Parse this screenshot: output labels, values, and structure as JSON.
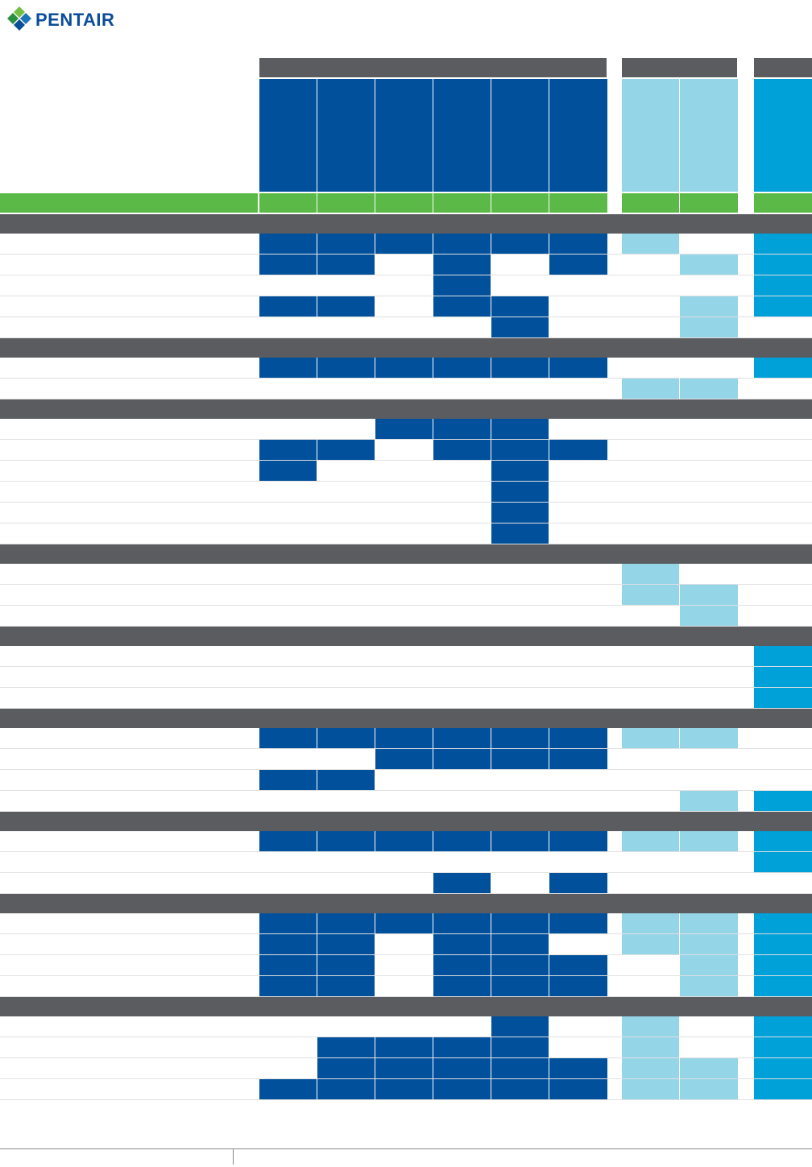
{
  "brand": {
    "name": "PENTAIR",
    "logo_icon": "pentair-diamond-icon",
    "text_color": "#0a4d9a",
    "icon_colors": [
      "#2a8f3e",
      "#73bf44",
      "#1b75bc"
    ]
  },
  "colors": {
    "section_gray": "#5a5c5f",
    "group_gray": "#5a5c5f",
    "accent_green": "#5bba47",
    "dark_blue": "#00509b",
    "light_blue": "#95d5e8",
    "mid_blue": "#00a0d8",
    "gridline": "#e0e0e0"
  },
  "columns": [
    {
      "id": "c1",
      "group": "A"
    },
    {
      "id": "c2",
      "group": "A"
    },
    {
      "id": "c3",
      "group": "A"
    },
    {
      "id": "c4",
      "group": "A"
    },
    {
      "id": "c5",
      "group": "A"
    },
    {
      "id": "c6",
      "group": "A"
    },
    {
      "id": "c7",
      "group": "B"
    },
    {
      "id": "c8",
      "group": "B"
    },
    {
      "id": "c9",
      "group": "C"
    }
  ],
  "sections": [
    {
      "rows": [
        [
          1,
          1,
          1,
          1,
          1,
          1,
          1,
          0,
          1
        ],
        [
          1,
          1,
          0,
          1,
          0,
          1,
          0,
          1,
          1
        ],
        [
          0,
          0,
          0,
          1,
          0,
          0,
          0,
          0,
          1
        ],
        [
          1,
          1,
          0,
          1,
          1,
          0,
          0,
          1,
          1
        ],
        [
          0,
          0,
          0,
          0,
          1,
          0,
          0,
          1,
          0
        ]
      ]
    },
    {
      "rows": [
        [
          1,
          1,
          1,
          1,
          1,
          1,
          0,
          0,
          1
        ],
        [
          0,
          0,
          0,
          0,
          0,
          0,
          1,
          1,
          0
        ]
      ]
    },
    {
      "rows": [
        [
          0,
          0,
          1,
          1,
          1,
          0,
          0,
          0,
          0
        ],
        [
          1,
          1,
          0,
          1,
          1,
          1,
          0,
          0,
          0
        ],
        [
          1,
          0,
          0,
          0,
          1,
          0,
          0,
          0,
          0
        ],
        [
          0,
          0,
          0,
          0,
          1,
          0,
          0,
          0,
          0
        ],
        [
          0,
          0,
          0,
          0,
          1,
          0,
          0,
          0,
          0
        ],
        [
          0,
          0,
          0,
          0,
          1,
          0,
          0,
          0,
          0
        ]
      ]
    },
    {
      "rows": [
        [
          0,
          0,
          0,
          0,
          0,
          0,
          1,
          0,
          0
        ],
        [
          0,
          0,
          0,
          0,
          0,
          0,
          1,
          1,
          0
        ],
        [
          0,
          0,
          0,
          0,
          0,
          0,
          0,
          1,
          0
        ]
      ]
    },
    {
      "rows": [
        [
          0,
          0,
          0,
          0,
          0,
          0,
          0,
          0,
          1
        ],
        [
          0,
          0,
          0,
          0,
          0,
          0,
          0,
          0,
          1
        ],
        [
          0,
          0,
          0,
          0,
          0,
          0,
          0,
          0,
          1
        ]
      ]
    },
    {
      "rows": [
        [
          1,
          1,
          1,
          1,
          1,
          1,
          1,
          1,
          0
        ],
        [
          0,
          0,
          1,
          1,
          1,
          1,
          0,
          0,
          0
        ],
        [
          1,
          1,
          0,
          0,
          0,
          0,
          0,
          0,
          0
        ],
        [
          0,
          0,
          0,
          0,
          0,
          0,
          0,
          1,
          1
        ]
      ]
    },
    {
      "rows": [
        [
          1,
          1,
          1,
          1,
          1,
          1,
          1,
          1,
          1
        ],
        [
          0,
          0,
          0,
          0,
          0,
          0,
          0,
          0,
          1
        ],
        [
          0,
          0,
          0,
          1,
          0,
          1,
          0,
          0,
          0
        ]
      ]
    },
    {
      "rows": [
        [
          1,
          1,
          1,
          1,
          1,
          1,
          1,
          1,
          1
        ],
        [
          1,
          1,
          0,
          1,
          1,
          0,
          1,
          1,
          1
        ],
        [
          1,
          1,
          0,
          1,
          1,
          1,
          0,
          1,
          1
        ],
        [
          1,
          1,
          0,
          1,
          1,
          1,
          0,
          1,
          1
        ]
      ]
    },
    {
      "rows": [
        [
          0,
          0,
          0,
          0,
          1,
          0,
          1,
          0,
          1
        ],
        [
          0,
          1,
          1,
          1,
          1,
          0,
          1,
          0,
          1
        ],
        [
          0,
          1,
          1,
          1,
          1,
          1,
          1,
          1,
          1
        ],
        [
          1,
          1,
          1,
          1,
          1,
          1,
          1,
          1,
          1
        ]
      ]
    }
  ]
}
